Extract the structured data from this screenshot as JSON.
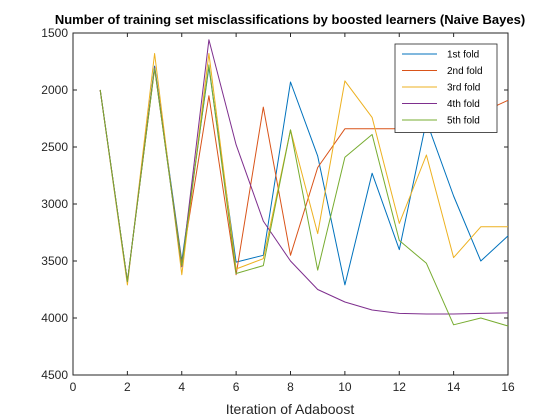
{
  "chart_data": {
    "type": "line",
    "title": "Number of training set misclassifications by boosted learners (Naive Bayes)",
    "xlabel": "Iteration of Adaboost",
    "ylabel": "",
    "xlim": [
      0,
      16
    ],
    "ylim": [
      1500,
      4500
    ],
    "y_reversed": true,
    "x_ticks": [
      0,
      2,
      4,
      6,
      8,
      10,
      12,
      14,
      16
    ],
    "y_ticks": [
      1500,
      2000,
      2500,
      3000,
      3500,
      4000,
      4500
    ],
    "x_tick_labels": [
      "0",
      "2",
      "4",
      "6",
      "8",
      "10",
      "12",
      "14",
      "16"
    ],
    "y_tick_labels": [
      "1500",
      "2000",
      "2500",
      "3000",
      "3500",
      "4000",
      "4500"
    ],
    "grid": false,
    "legend_position": "top-right",
    "x": [
      1,
      2,
      3,
      4,
      5,
      6,
      7,
      8,
      9,
      10,
      11,
      12,
      13,
      14,
      15,
      16
    ],
    "series": [
      {
        "name": "1st fold",
        "color": "#0072BD",
        "values": [
          2000,
          3680,
          1790,
          3500,
          1800,
          3510,
          3450,
          1930,
          2580,
          3710,
          2730,
          3400,
          2270,
          2930,
          3500,
          3280
        ]
      },
      {
        "name": "2nd fold",
        "color": "#D95319",
        "values": [
          2000,
          3680,
          1810,
          3520,
          2050,
          3620,
          2150,
          3450,
          2680,
          2340,
          2340,
          2340,
          2340,
          2340,
          2200,
          2090
        ]
      },
      {
        "name": "3rd fold",
        "color": "#EDB120",
        "values": [
          2000,
          3710,
          1680,
          3620,
          1680,
          3570,
          3480,
          2350,
          3260,
          1920,
          2240,
          3170,
          2570,
          3470,
          3200,
          3200
        ]
      },
      {
        "name": "4th fold",
        "color": "#7E2F8E",
        "values": [
          2000,
          3680,
          1800,
          3550,
          1560,
          2480,
          3150,
          3500,
          3750,
          3860,
          3930,
          3960,
          3965,
          3965,
          3960,
          3955
        ]
      },
      {
        "name": "5th fold",
        "color": "#77AC30",
        "values": [
          2000,
          3680,
          1810,
          3540,
          1780,
          3610,
          3540,
          2350,
          3580,
          2590,
          2390,
          3320,
          3520,
          4060,
          4000,
          4070
        ]
      }
    ]
  }
}
